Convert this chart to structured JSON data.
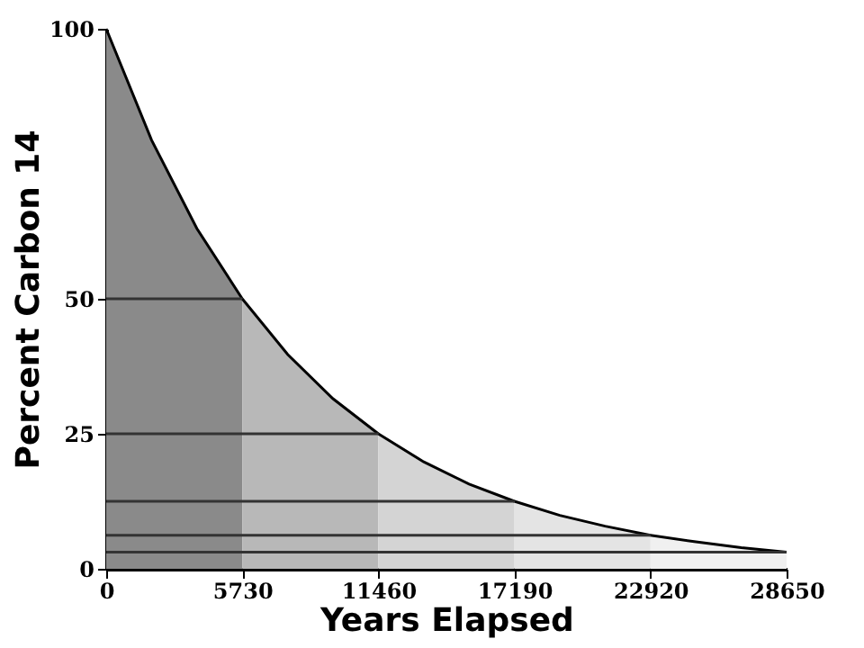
{
  "chart_data": {
    "type": "area",
    "xlabel": "Years Elapsed",
    "ylabel": "Percent Carbon 14",
    "xlim": [
      0,
      28650
    ],
    "ylim": [
      0,
      100
    ],
    "xticks": [
      0,
      5730,
      11460,
      17190,
      22920,
      28650
    ],
    "yticks": [
      0,
      25,
      50,
      100
    ],
    "grid": false,
    "series": [
      {
        "color": "#8a8a8a",
        "x": [
          0,
          1910,
          3820,
          5730
        ],
        "values": [
          100,
          79.4,
          63.0,
          50
        ]
      },
      {
        "color": "#b8b8b8",
        "x": [
          5730,
          7640,
          9550,
          11460
        ],
        "values": [
          50,
          39.7,
          31.5,
          25
        ]
      },
      {
        "color": "#d4d4d4",
        "x": [
          11460,
          13370,
          15280,
          17190
        ],
        "values": [
          25,
          19.8,
          15.7,
          12.5
        ]
      },
      {
        "color": "#e4e4e4",
        "x": [
          17190,
          19100,
          21010,
          22920
        ],
        "values": [
          12.5,
          9.9,
          7.9,
          6.2
        ]
      },
      {
        "color": "#f0f0f0",
        "x": [
          22920,
          24830,
          26740,
          28650
        ],
        "values": [
          6.2,
          5.0,
          3.9,
          3.1
        ]
      }
    ],
    "ref_lines": [
      {
        "axis": "y",
        "value": 50,
        "color": "#333333"
      },
      {
        "axis": "y",
        "value": 25,
        "color": "#333333"
      },
      {
        "axis": "y",
        "value": 12.5,
        "color": "#333333"
      },
      {
        "axis": "y",
        "value": 6.2,
        "color": "#333333"
      },
      {
        "axis": "y",
        "value": 3.1,
        "color": "#333333"
      }
    ]
  }
}
